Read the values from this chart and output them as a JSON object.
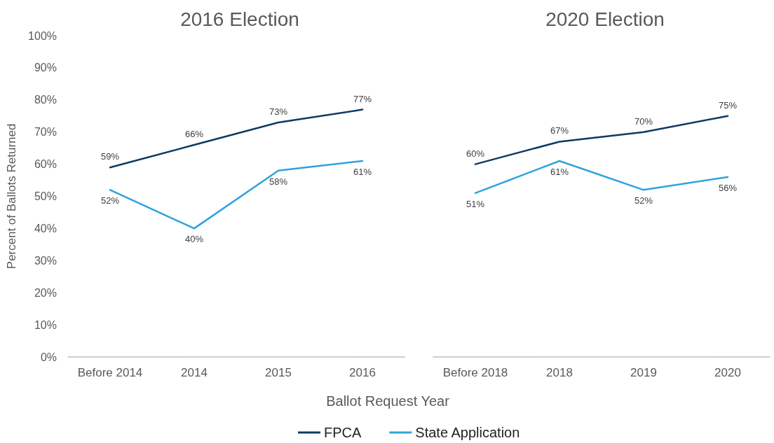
{
  "chart_data": [
    {
      "type": "line",
      "title": "2016 Election",
      "xlabel": "Ballot Request Year",
      "ylabel": "Percent of Ballots Returned",
      "categories": [
        "Before 2014",
        "2014",
        "2015",
        "2016"
      ],
      "series": [
        {
          "name": "FPCA",
          "color": "#0e3a64",
          "values": [
            59,
            66,
            73,
            77
          ]
        },
        {
          "name": "State Application",
          "color": "#2ea3dc",
          "values": [
            52,
            40,
            58,
            61
          ]
        }
      ],
      "ylim": [
        0,
        100
      ],
      "yticks": [
        {
          "value": 0,
          "label": "0%"
        },
        {
          "value": 10,
          "label": "10%"
        },
        {
          "value": 20,
          "label": "20%"
        },
        {
          "value": 30,
          "label": "30%"
        },
        {
          "value": 40,
          "label": "40%"
        },
        {
          "value": 50,
          "label": "50%"
        },
        {
          "value": 60,
          "label": "60%"
        },
        {
          "value": 70,
          "label": "70%"
        },
        {
          "value": 80,
          "label": "80%"
        },
        {
          "value": 90,
          "label": "90%"
        },
        {
          "value": 100,
          "label": "100%"
        }
      ],
      "value_labels": [
        [
          "59%",
          "66%",
          "73%",
          "77%"
        ],
        [
          "52%",
          "40%",
          "58%",
          "61%"
        ]
      ],
      "grid": false,
      "legend": "bottom",
      "marker": "none",
      "line_style": "solid"
    },
    {
      "type": "line",
      "title": "2020 Election",
      "categories": [
        "Before 2018",
        "2018",
        "2019",
        "2020"
      ],
      "series": [
        {
          "color": "#0e3a64",
          "values": [
            60,
            67,
            70,
            75
          ]
        },
        {
          "color": "#2ea3dc",
          "values": [
            51,
            61,
            52,
            56
          ]
        }
      ],
      "ylim": [
        0,
        100
      ],
      "value_labels": [
        [
          "60%",
          "67%",
          "70%",
          "75%"
        ],
        [
          "51%",
          "61%",
          "52%",
          "56%"
        ]
      ],
      "tick_labels": "x",
      "grid": false,
      "marker": "none",
      "line_style": "solid"
    }
  ]
}
